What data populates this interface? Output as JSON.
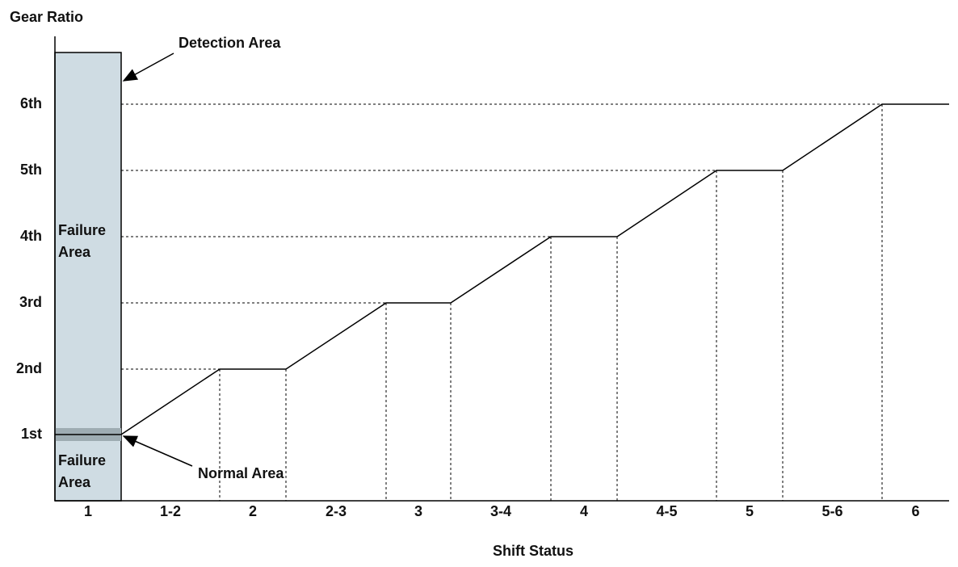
{
  "y_axis": {
    "title": "Gear Ratio",
    "labels": [
      "1st",
      "2nd",
      "3rd",
      "4th",
      "5th",
      "6th"
    ]
  },
  "x_axis": {
    "title": "Shift Status",
    "labels": [
      "1",
      "1-2",
      "2",
      "2-3",
      "3",
      "3-4",
      "4",
      "4-5",
      "5",
      "5-6",
      "6"
    ]
  },
  "annotations": {
    "detection_area": "Detection Area",
    "normal_area": "Normal Area",
    "failure_area_upper": [
      "Failure",
      "Area"
    ],
    "failure_area_lower": [
      "Failure",
      "Area"
    ]
  }
}
